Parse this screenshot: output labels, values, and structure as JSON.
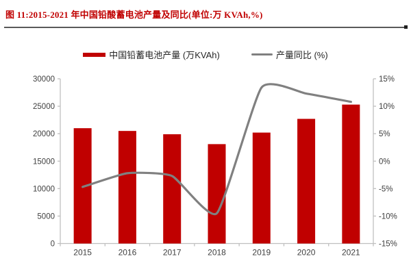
{
  "figure": {
    "title": "图 11:2015-2021 年中国铅酸蓄电池产量及同比(单位:万 KVAh,%)"
  },
  "legend": [
    {
      "label": "中国铅蓄电池产量 (万KVAh)",
      "marker": "bar-swatch",
      "color": "#C00000"
    },
    {
      "label": "产量同比 (%)",
      "marker": "line-swatch",
      "color": "#808080"
    }
  ],
  "chart_data": {
    "type": "bar",
    "subtype": "bar+smooth-line, dual axis",
    "categories": [
      "2015",
      "2016",
      "2017",
      "2018",
      "2019",
      "2020",
      "2021"
    ],
    "series": [
      {
        "name": "中国铅蓄电池产量 (万KVAh)",
        "type": "bar",
        "axis": "left",
        "color": "#C00000",
        "values": [
          21000,
          20500,
          19900,
          18100,
          20200,
          22700,
          25300
        ]
      },
      {
        "name": "产量同比 (%)",
        "type": "line",
        "axis": "right",
        "color": "#808080",
        "values": [
          -4.7,
          -2.2,
          -2.7,
          -9.5,
          13.4,
          12.3,
          10.8
        ]
      }
    ],
    "title": "2015-2021 年中国铅酸蓄电池产量及同比",
    "xlabel": "",
    "ylabel_left": "万KVAh",
    "ylabel_right": "%",
    "left_axis": {
      "min": 0,
      "max": 30000,
      "ticks": [
        0,
        5000,
        10000,
        15000,
        20000,
        25000,
        30000
      ],
      "tick_labels": [
        "0",
        "5000",
        "10000",
        "15000",
        "20000",
        "25000",
        "30000"
      ]
    },
    "right_axis": {
      "min": -15,
      "max": 15,
      "ticks": [
        -15,
        -10,
        -5,
        0,
        5,
        10,
        15
      ],
      "tick_labels": [
        "-15%",
        "-10%",
        "-5%",
        "0%",
        "5%",
        "10%",
        "15%"
      ]
    },
    "grid": false,
    "legend_position": "top",
    "axis_line_color": "#BFBFBF",
    "tick_label_color": "#404040"
  }
}
